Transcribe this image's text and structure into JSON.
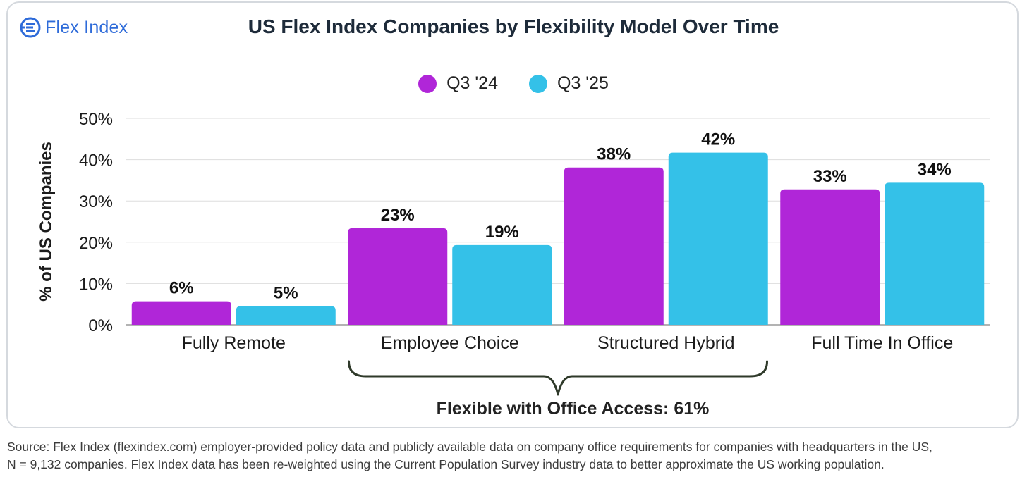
{
  "logo": {
    "text": "Flex Index",
    "color": "#2e6bd9"
  },
  "chart_data": {
    "type": "bar",
    "title": "US Flex Index Companies by Flexibility Model Over Time",
    "ylabel": "% of US Companies",
    "xlabel": "",
    "ylim": [
      0,
      50
    ],
    "yticks": [
      "0%",
      "10%",
      "20%",
      "30%",
      "40%",
      "50%"
    ],
    "grid": true,
    "legend_position": "top-center",
    "categories": [
      "Fully Remote",
      "Employee Choice",
      "Structured Hybrid",
      "Full Time In Office"
    ],
    "series": [
      {
        "name": "Q3 '24",
        "color": "#b026d8",
        "values": [
          5.7,
          23.4,
          38.1,
          32.8
        ],
        "labels": [
          "6%",
          "23%",
          "38%",
          "33%"
        ]
      },
      {
        "name": "Q3 '25",
        "color": "#34c1e8",
        "values": [
          4.5,
          19.3,
          41.7,
          34.4
        ],
        "labels": [
          "5%",
          "19%",
          "42%",
          "34%"
        ]
      }
    ],
    "annotation": "Flexible with Office Access: 61%"
  },
  "source": {
    "prefix": "Source: ",
    "link_text": "Flex Index",
    "line1_rest": " (flexindex.com) employer-provided policy data and publicly available data on company office requirements for companies with headquarters in the US,",
    "line2": "N = 9,132 companies. Flex Index data has been re-weighted using the Current Population Survey industry data to better approximate the US working population."
  }
}
